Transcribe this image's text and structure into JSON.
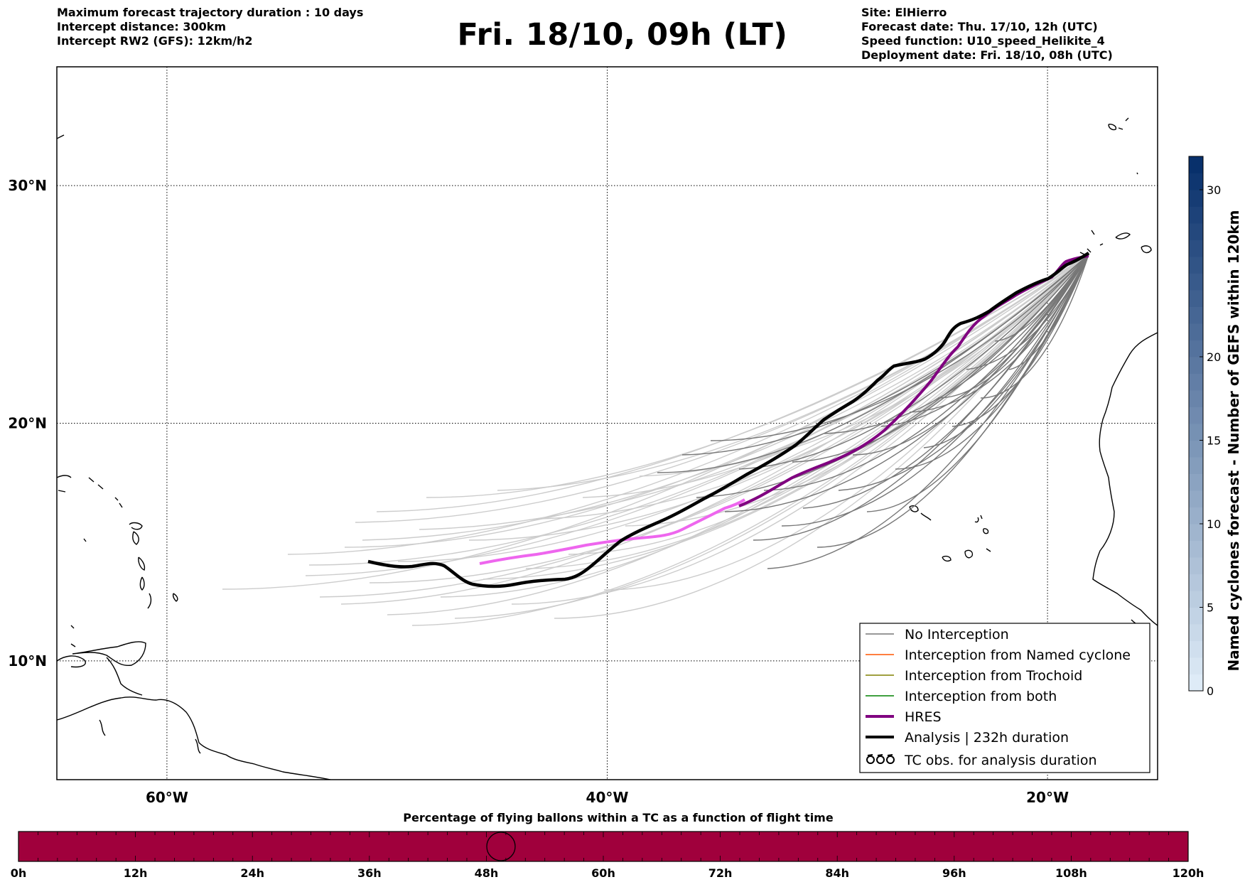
{
  "header": {
    "left_lines": [
      "Maximum forecast trajectory duration : 10 days",
      "Intercept distance: 300km",
      "Intercept RW2 (GFS):  12km/h2"
    ],
    "title": "Fri. 18/10, 09h (LT)",
    "right_lines": [
      "Site: ElHierro",
      "Forecast date: Thu. 17/10, 12h (UTC)",
      "Speed function: U10_speed_Helikite_4",
      "Deployment date: Fri. 18/10, 08h (UTC)"
    ]
  },
  "map": {
    "lon_range": [
      -65,
      -15
    ],
    "lat_range": [
      5,
      35
    ],
    "lon_ticks": [
      {
        "value": -60,
        "label": "60°W"
      },
      {
        "value": -40,
        "label": "40°W"
      },
      {
        "value": -20,
        "label": "20°W"
      }
    ],
    "lat_ticks": [
      {
        "value": 30,
        "label": "30°N"
      },
      {
        "value": 20,
        "label": "20°N"
      },
      {
        "value": 10,
        "label": "10°N"
      }
    ],
    "grid": "dotted",
    "colors": {
      "no_interception": "#777777",
      "named_cyclone": "#ff5500",
      "trochoid": "#808000",
      "both": "#008000",
      "hres": "#800080",
      "hres_late": "#ee66ee",
      "analysis": "#000000",
      "faded": "#cccccc"
    }
  },
  "legend": {
    "position": "lower-right",
    "items": [
      {
        "label": "No Interception",
        "color": "#777777",
        "style": "thin"
      },
      {
        "label": "Interception from Named cyclone",
        "color": "#ff5500",
        "style": "thin"
      },
      {
        "label": "Interception from Trochoid",
        "color": "#808000",
        "style": "thin"
      },
      {
        "label": "Interception from both",
        "color": "#008000",
        "style": "thin"
      },
      {
        "label": "HRES",
        "color": "#800080",
        "style": "thick"
      },
      {
        "label": "Analysis | 232h duration",
        "color": "#000000",
        "style": "thick"
      },
      {
        "label": "TC obs. for analysis duration",
        "color": "#000000",
        "style": "symbol"
      }
    ]
  },
  "colorbar": {
    "label": "Named cyclones forecast - Number of GEFS within 120km",
    "ticks": [
      0,
      5,
      10,
      15,
      20,
      30
    ],
    "range": [
      0,
      32
    ]
  },
  "timeline": {
    "title": "Percentage of flying ballons within a TC as a function of flight time",
    "labels": [
      "0h",
      "12h",
      "24h",
      "36h",
      "48h",
      "60h",
      "72h",
      "84h",
      "96h",
      "108h",
      "120h"
    ],
    "bar_color": "#a0003c",
    "marker_hours": 49.5
  }
}
